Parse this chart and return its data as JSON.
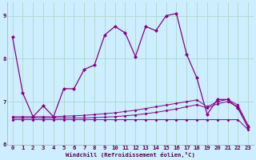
{
  "xlabel": "Windchill (Refroidissement éolien,°C)",
  "background_color": "#cceeff",
  "grid_color": "#b0ddd0",
  "line_color": "#880088",
  "spine_color": "#aaaaaa",
  "xlim": [
    -0.5,
    23.5
  ],
  "ylim": [
    6.0,
    9.3
  ],
  "yticks": [
    6,
    7,
    8,
    9
  ],
  "xticks": [
    0,
    1,
    2,
    3,
    4,
    5,
    6,
    7,
    8,
    9,
    10,
    11,
    12,
    13,
    14,
    15,
    16,
    17,
    18,
    19,
    20,
    21,
    22,
    23
  ],
  "hours": [
    0,
    1,
    2,
    3,
    4,
    5,
    6,
    7,
    8,
    9,
    10,
    11,
    12,
    13,
    14,
    15,
    16,
    17,
    18,
    19,
    20,
    21,
    22,
    23
  ],
  "main_line": [
    8.5,
    7.2,
    6.65,
    6.9,
    6.65,
    7.3,
    7.3,
    7.75,
    7.85,
    8.55,
    8.75,
    8.6,
    8.05,
    8.75,
    8.65,
    9.0,
    9.05,
    8.1,
    7.55,
    6.7,
    7.05,
    7.05,
    6.85,
    6.4
  ],
  "flat_line1": [
    6.62,
    6.62,
    6.62,
    6.62,
    6.62,
    6.62,
    6.62,
    6.62,
    6.63,
    6.64,
    6.65,
    6.67,
    6.69,
    6.72,
    6.75,
    6.79,
    6.83,
    6.88,
    6.93,
    6.85,
    6.95,
    7.0,
    6.88,
    6.4
  ],
  "flat_line2": [
    6.65,
    6.65,
    6.65,
    6.65,
    6.65,
    6.66,
    6.67,
    6.68,
    6.7,
    6.72,
    6.74,
    6.77,
    6.8,
    6.84,
    6.88,
    6.92,
    6.96,
    7.0,
    7.04,
    6.88,
    7.0,
    7.05,
    6.92,
    6.45
  ],
  "flat_line3": [
    6.58,
    6.58,
    6.58,
    6.58,
    6.58,
    6.58,
    6.58,
    6.58,
    6.58,
    6.58,
    6.58,
    6.58,
    6.58,
    6.58,
    6.58,
    6.58,
    6.58,
    6.58,
    6.58,
    6.58,
    6.58,
    6.58,
    6.58,
    6.35
  ]
}
